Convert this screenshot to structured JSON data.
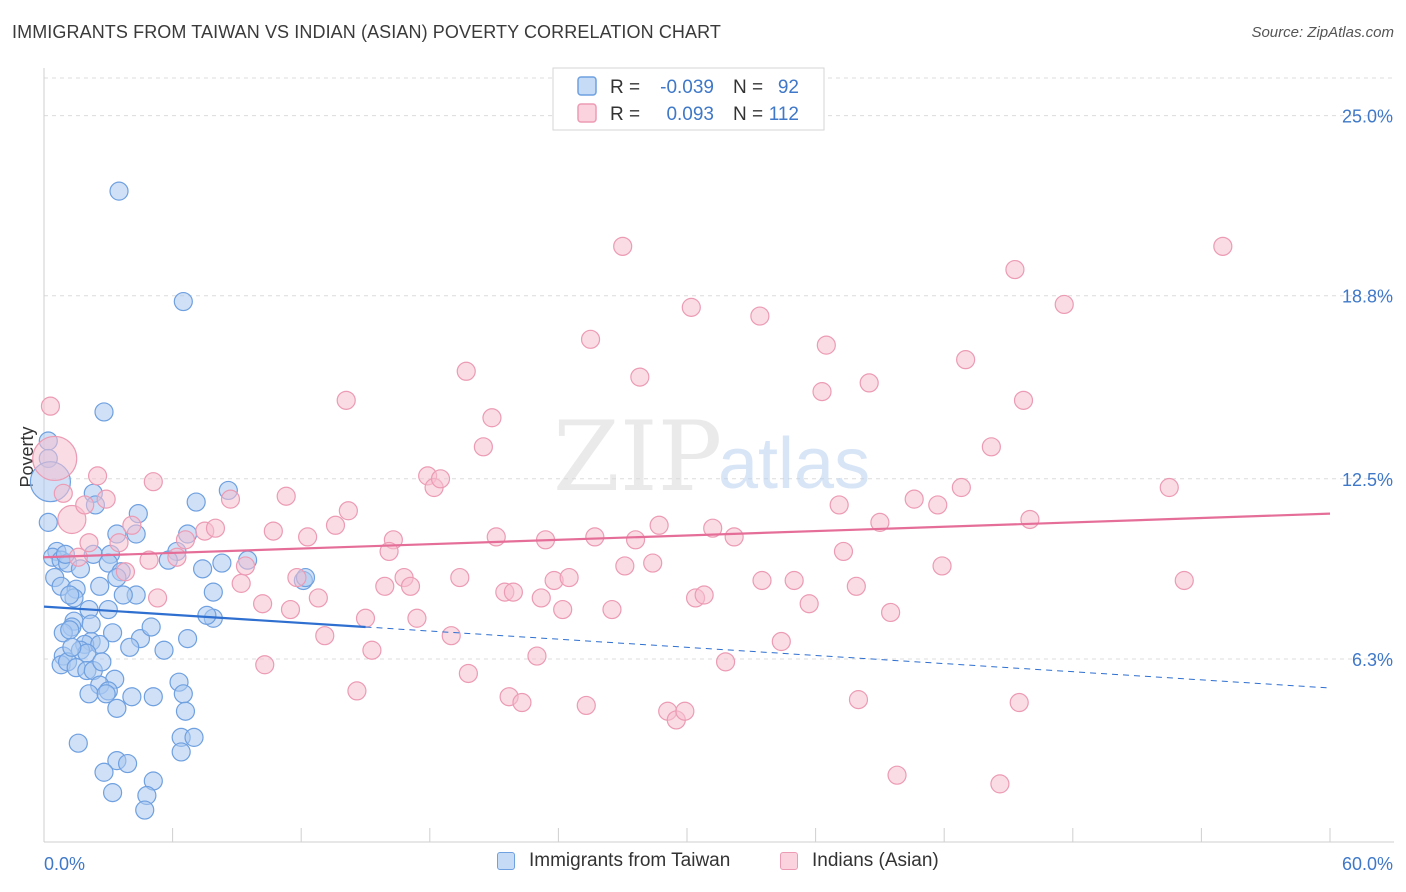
{
  "header": {
    "title": "IMMIGRANTS FROM TAIWAN VS INDIAN (ASIAN) POVERTY CORRELATION CHART",
    "source": "Source: ZipAtlas.com"
  },
  "watermark": {
    "zip": "ZIP",
    "atlas": "atlas"
  },
  "colors": {
    "blue_fill": "#a9c8f0",
    "blue_stroke": "#6fa0e0",
    "blue_line": "#2e6fd0",
    "pink_fill": "#f6bfd0",
    "pink_stroke": "#ec9bb4",
    "pink_line": "#e56e98",
    "value_text": "#3f78c8",
    "grid": "#dcdcdc"
  },
  "chart_data": {
    "type": "scatter",
    "title": "IMMIGRANTS FROM TAIWAN VS INDIAN (ASIAN) POVERTY CORRELATION CHART",
    "ylabel": "Poverty",
    "xlabel": "",
    "xlim": [
      0,
      60
    ],
    "ylim": [
      0,
      26.5
    ],
    "y_ticks": [
      {
        "value": 6.3,
        "label": "6.3%"
      },
      {
        "value": 12.5,
        "label": "12.5%"
      },
      {
        "value": 18.8,
        "label": "18.8%"
      },
      {
        "value": 25.0,
        "label": "25.0%"
      }
    ],
    "x_tick_labels": {
      "left": "0.0%",
      "right": "60.0%"
    },
    "legend": {
      "placement": "top-center",
      "rows": [
        {
          "series": "Immigrants from Taiwan",
          "r_label": "R =",
          "r_value": "-0.039",
          "n_label": "N =",
          "n_value": "92"
        },
        {
          "series": "Indians (Asian)",
          "r_label": "R =",
          "r_value": "0.093",
          "n_label": "N =",
          "n_value": "112"
        }
      ]
    },
    "series": [
      {
        "name": "Immigrants from Taiwan",
        "color": "blue",
        "trend": {
          "x0": 0,
          "y0": 8.1,
          "x1": 15,
          "y1": 7.4,
          "dashed_to_x": 60,
          "dashed_to_y": 5.3
        },
        "points": [
          [
            3.5,
            22.4
          ],
          [
            6.5,
            18.6
          ],
          [
            2.8,
            14.8
          ],
          [
            0.2,
            13.8
          ],
          [
            0.2,
            13.2
          ],
          [
            0.3,
            12.4
          ],
          [
            0.2,
            11.0
          ],
          [
            2.3,
            12.0
          ],
          [
            8.6,
            12.1
          ],
          [
            7.1,
            11.7
          ],
          [
            2.4,
            11.6
          ],
          [
            3.4,
            10.6
          ],
          [
            4.3,
            10.6
          ],
          [
            6.7,
            10.6
          ],
          [
            6.2,
            10.0
          ],
          [
            0.6,
            10.0
          ],
          [
            0.4,
            9.8
          ],
          [
            0.8,
            9.7
          ],
          [
            1.1,
            9.6
          ],
          [
            1.7,
            9.4
          ],
          [
            2.3,
            9.9
          ],
          [
            3.1,
            9.9
          ],
          [
            3.0,
            9.6
          ],
          [
            3.6,
            9.3
          ],
          [
            5.8,
            9.7
          ],
          [
            7.4,
            9.4
          ],
          [
            8.3,
            9.6
          ],
          [
            9.5,
            9.7
          ],
          [
            0.5,
            9.1
          ],
          [
            0.8,
            8.8
          ],
          [
            1.5,
            8.7
          ],
          [
            2.6,
            8.8
          ],
          [
            4.3,
            8.5
          ],
          [
            3.7,
            8.5
          ],
          [
            7.9,
            8.6
          ],
          [
            12.1,
            9.0
          ],
          [
            12.2,
            9.1
          ],
          [
            1.4,
            8.4
          ],
          [
            1.2,
            8.5
          ],
          [
            2.1,
            8.0
          ],
          [
            3.0,
            8.0
          ],
          [
            7.9,
            7.7
          ],
          [
            1.4,
            7.6
          ],
          [
            1.3,
            7.4
          ],
          [
            0.9,
            7.2
          ],
          [
            1.2,
            7.3
          ],
          [
            3.2,
            7.2
          ],
          [
            4.5,
            7.0
          ],
          [
            2.2,
            6.9
          ],
          [
            1.9,
            6.8
          ],
          [
            2.6,
            6.8
          ],
          [
            4.0,
            6.7
          ],
          [
            5.6,
            6.6
          ],
          [
            1.7,
            6.6
          ],
          [
            2.0,
            6.5
          ],
          [
            0.9,
            6.4
          ],
          [
            0.8,
            6.1
          ],
          [
            1.1,
            6.2
          ],
          [
            1.5,
            6.0
          ],
          [
            2.0,
            5.9
          ],
          [
            2.3,
            5.9
          ],
          [
            3.3,
            5.6
          ],
          [
            2.6,
            5.4
          ],
          [
            3.0,
            5.2
          ],
          [
            6.3,
            5.5
          ],
          [
            2.1,
            5.1
          ],
          [
            2.9,
            5.1
          ],
          [
            5.1,
            5.0
          ],
          [
            6.5,
            5.1
          ],
          [
            3.4,
            4.6
          ],
          [
            6.6,
            4.5
          ],
          [
            6.4,
            3.6
          ],
          [
            7.0,
            3.6
          ],
          [
            1.6,
            3.4
          ],
          [
            6.4,
            3.1
          ],
          [
            3.4,
            2.8
          ],
          [
            3.9,
            2.7
          ],
          [
            2.8,
            2.4
          ],
          [
            5.1,
            2.1
          ],
          [
            3.2,
            1.7
          ],
          [
            4.8,
            1.6
          ],
          [
            4.7,
            1.1
          ],
          [
            4.1,
            5.0
          ],
          [
            2.7,
            6.2
          ],
          [
            5.0,
            7.4
          ],
          [
            3.4,
            9.1
          ],
          [
            1.0,
            9.9
          ],
          [
            4.4,
            11.3
          ],
          [
            1.3,
            6.7
          ],
          [
            6.7,
            7.0
          ],
          [
            2.2,
            7.5
          ],
          [
            7.6,
            7.8
          ]
        ],
        "sizes": {
          "0,13.8": 30,
          "0.2,11.0": 20,
          "0.3,12.4": 20
        }
      },
      {
        "name": "Indians (Asian)",
        "color": "pink",
        "trend": {
          "x0": 0,
          "y0": 9.8,
          "x1": 60,
          "y1": 11.3
        },
        "points": [
          [
            0.3,
            15.0
          ],
          [
            0.5,
            13.2
          ],
          [
            0.9,
            12.0
          ],
          [
            1.3,
            11.1
          ],
          [
            2.1,
            10.3
          ],
          [
            2.5,
            12.6
          ],
          [
            2.9,
            11.8
          ],
          [
            3.5,
            10.3
          ],
          [
            3.8,
            9.3
          ],
          [
            4.1,
            10.9
          ],
          [
            4.9,
            9.7
          ],
          [
            5.3,
            8.4
          ],
          [
            5.1,
            12.4
          ],
          [
            6.2,
            9.8
          ],
          [
            6.6,
            10.4
          ],
          [
            7.5,
            10.7
          ],
          [
            8.0,
            10.8
          ],
          [
            8.7,
            11.8
          ],
          [
            9.2,
            8.9
          ],
          [
            9.4,
            9.5
          ],
          [
            10.2,
            8.2
          ],
          [
            10.3,
            6.1
          ],
          [
            10.7,
            10.7
          ],
          [
            11.3,
            11.9
          ],
          [
            11.5,
            8.0
          ],
          [
            11.8,
            9.1
          ],
          [
            12.3,
            10.5
          ],
          [
            12.8,
            8.4
          ],
          [
            13.1,
            7.1
          ],
          [
            13.6,
            10.9
          ],
          [
            14.1,
            15.2
          ],
          [
            14.2,
            11.4
          ],
          [
            14.6,
            5.2
          ],
          [
            15.0,
            7.7
          ],
          [
            15.3,
            6.6
          ],
          [
            15.9,
            8.8
          ],
          [
            16.3,
            10.4
          ],
          [
            16.8,
            9.1
          ],
          [
            17.1,
            8.8
          ],
          [
            17.4,
            7.7
          ],
          [
            17.9,
            12.6
          ],
          [
            18.2,
            12.2
          ],
          [
            18.5,
            12.5
          ],
          [
            19.0,
            7.1
          ],
          [
            19.4,
            9.1
          ],
          [
            19.7,
            16.2
          ],
          [
            19.8,
            5.8
          ],
          [
            20.5,
            13.6
          ],
          [
            20.9,
            14.6
          ],
          [
            21.1,
            10.5
          ],
          [
            21.5,
            8.6
          ],
          [
            21.7,
            5.0
          ],
          [
            21.9,
            8.6
          ],
          [
            22.3,
            4.8
          ],
          [
            23.0,
            6.4
          ],
          [
            23.2,
            8.4
          ],
          [
            23.4,
            10.4
          ],
          [
            23.8,
            9.0
          ],
          [
            24.2,
            8.0
          ],
          [
            24.5,
            9.1
          ],
          [
            25.3,
            4.7
          ],
          [
            25.5,
            17.3
          ],
          [
            25.7,
            10.5
          ],
          [
            26.5,
            8.0
          ],
          [
            27.0,
            20.5
          ],
          [
            27.1,
            9.5
          ],
          [
            27.6,
            10.4
          ],
          [
            27.8,
            16.0
          ],
          [
            28.4,
            9.6
          ],
          [
            28.7,
            10.9
          ],
          [
            29.1,
            4.5
          ],
          [
            29.5,
            4.2
          ],
          [
            29.9,
            4.5
          ],
          [
            30.2,
            18.4
          ],
          [
            30.4,
            8.4
          ],
          [
            30.8,
            8.5
          ],
          [
            31.2,
            10.8
          ],
          [
            31.8,
            6.2
          ],
          [
            32.2,
            10.5
          ],
          [
            33.4,
            18.1
          ],
          [
            33.5,
            9.0
          ],
          [
            34.4,
            6.9
          ],
          [
            35.0,
            9.0
          ],
          [
            35.7,
            8.2
          ],
          [
            36.3,
            15.5
          ],
          [
            36.5,
            17.1
          ],
          [
            37.1,
            11.6
          ],
          [
            37.3,
            10.0
          ],
          [
            37.9,
            8.8
          ],
          [
            38.0,
            4.9
          ],
          [
            38.5,
            15.8
          ],
          [
            39.0,
            11.0
          ],
          [
            39.5,
            7.9
          ],
          [
            39.8,
            2.3
          ],
          [
            40.6,
            11.8
          ],
          [
            41.7,
            11.6
          ],
          [
            41.9,
            9.5
          ],
          [
            42.8,
            12.2
          ],
          [
            43.0,
            16.6
          ],
          [
            44.2,
            13.6
          ],
          [
            44.6,
            2.0
          ],
          [
            45.3,
            19.7
          ],
          [
            45.5,
            4.8
          ],
          [
            45.7,
            15.2
          ],
          [
            46.0,
            11.1
          ],
          [
            47.6,
            18.5
          ],
          [
            52.5,
            12.2
          ],
          [
            53.2,
            9.0
          ],
          [
            55.0,
            20.5
          ],
          [
            1.9,
            11.6
          ],
          [
            16.1,
            10.0
          ],
          [
            1.6,
            9.8
          ]
        ],
        "sizes": {
          "0.3,15.0": 30,
          "0.5,13.2": 22,
          "0.9,12.0": 18,
          "1.3,11.1": 14
        }
      }
    ]
  }
}
